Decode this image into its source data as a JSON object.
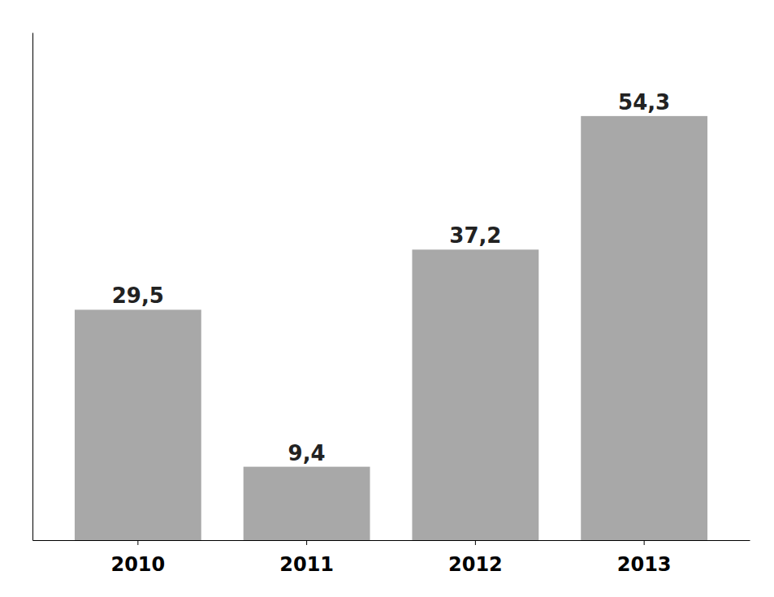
{
  "chart_data": {
    "type": "bar",
    "categories": [
      "2010",
      "2011",
      "2012",
      "2013"
    ],
    "values": [
      29.5,
      9.4,
      37.2,
      54.3
    ],
    "value_labels": [
      "29,5",
      "9,4",
      "37,2",
      "54,3"
    ],
    "color": "#a8a8a8",
    "ylim": [
      0,
      65
    ],
    "data_labels": true,
    "tick_labels": "x"
  }
}
